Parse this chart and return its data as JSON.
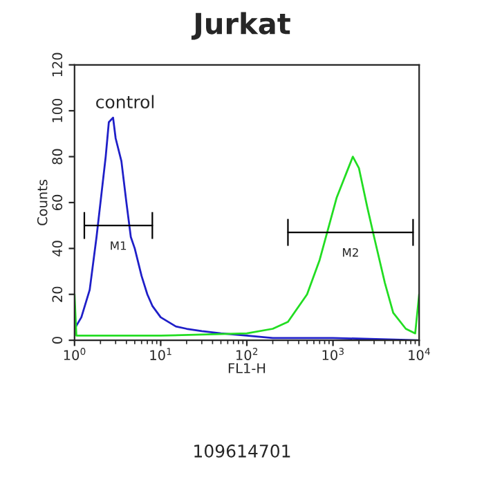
{
  "chart_data": {
    "type": "line",
    "title": "Jurkat",
    "xlabel": "FL1-H",
    "ylabel": "Counts",
    "log": "x",
    "xlim": [
      1,
      10000
    ],
    "xticks": [
      {
        "value": 1,
        "label": "10$^{0}$"
      },
      {
        "value": 10,
        "label": "10$^{1}$"
      },
      {
        "value": 100,
        "label": "10$^{2}$"
      },
      {
        "value": 1000,
        "label": "10$^{3}$"
      },
      {
        "value": 10000,
        "label": "10$^{4}$"
      }
    ],
    "ylim": [
      0,
      120
    ],
    "yticks": [
      0,
      20,
      40,
      60,
      80,
      100,
      120
    ],
    "grid": false,
    "legend": false,
    "series": [
      {
        "color": "#1f1fc8",
        "x": [
          1,
          1.2,
          1.5,
          1.8,
          2.0,
          2.3,
          2.5,
          2.8,
          3.0,
          3.5,
          4.0,
          4.5,
          5.0,
          6,
          7,
          8,
          10,
          15,
          20,
          30,
          50,
          100,
          200,
          1000,
          10000
        ],
        "values": [
          5,
          10,
          22,
          45,
          60,
          80,
          95,
          97,
          88,
          78,
          60,
          45,
          40,
          28,
          20,
          15,
          10,
          6,
          5,
          4,
          3,
          2,
          1,
          1,
          0
        ]
      },
      {
        "color": "#22dd22",
        "x": [
          1,
          1.05,
          10,
          100,
          200,
          300,
          500,
          700,
          900,
          1100,
          1400,
          1700,
          2000,
          2500,
          3000,
          4000,
          5000,
          7000,
          9000,
          10000
        ],
        "values": [
          20,
          2,
          2,
          3,
          5,
          8,
          20,
          35,
          50,
          62,
          72,
          80,
          75,
          58,
          45,
          25,
          12,
          5,
          3,
          20
        ]
      },
      {
        "type": "line",
        "color": "#000000",
        "x": [
          1.3,
          8
        ],
        "values": [
          50,
          50
        ]
      },
      {
        "type": "line",
        "color": "#000000",
        "x": [
          300,
          8500
        ],
        "values": [
          47,
          47
        ]
      }
    ],
    "annotations": [
      "control",
      "109614701",
      "M1",
      "M2"
    ]
  }
}
